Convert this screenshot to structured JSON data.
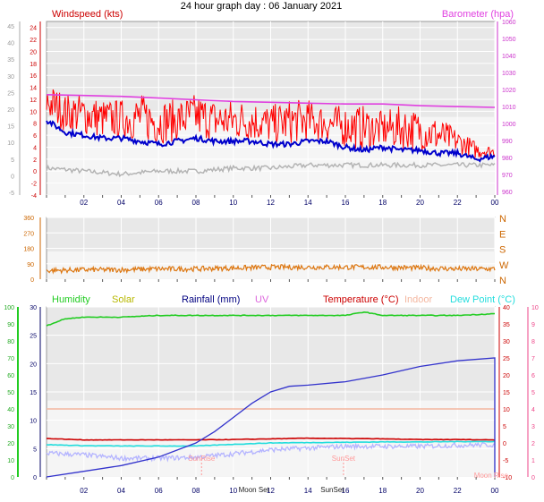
{
  "title": "24 hour graph day : 06 January 2021",
  "colors": {
    "wind_gust": "#ff0000",
    "wind_avg": "#0000cc",
    "wind_grey": "#b4b4b4",
    "barometer": "#e040e0",
    "direction": "#dd7711",
    "humidity": "#22cc22",
    "solar": "#b8b800",
    "rainfall": "#3333cc",
    "uv": "#dd66dd",
    "temperature": "#cc0000",
    "indoor": "#f4b7a0",
    "dewpoint": "#22dddd",
    "apparent": "#b4b4ff",
    "left_axis_ticks": "#999999",
    "baro_axis": "#cc33cc",
    "humidity_axis": "#22aa22",
    "temp_axis": "#cc0000",
    "uv_axis": "#ee4488"
  },
  "chart_data": [
    {
      "type": "line",
      "name": "wind-barometer",
      "title": "24 hour graph day : 06 January 2021",
      "ylabel": "Windspeed (kts)",
      "y2label": "Barometer (hpa)",
      "ylim": [
        -4,
        25
      ],
      "y2lim": [
        958,
        1060
      ],
      "y_ticks": [
        -4,
        -2,
        0,
        2,
        4,
        6,
        8,
        10,
        12,
        14,
        16,
        18,
        20,
        22,
        24
      ],
      "y_ticks_grey": [
        -5,
        0,
        5,
        10,
        15,
        20,
        25,
        30,
        35,
        40,
        45
      ],
      "y2_ticks": [
        960,
        970,
        980,
        990,
        1000,
        1010,
        1020,
        1030,
        1040,
        1050,
        1060
      ],
      "x_ticks": [
        "02",
        "04",
        "06",
        "08",
        "10",
        "12",
        "14",
        "16",
        "18",
        "20",
        "22",
        "00"
      ],
      "xlim_hours": [
        0,
        24
      ],
      "grid": true,
      "series": [
        {
          "name": "Windspeed (kts)",
          "x": [
            0,
            1,
            2,
            3,
            4,
            5,
            6,
            7,
            8,
            9,
            10,
            11,
            12,
            13,
            14,
            15,
            16,
            17,
            18,
            19,
            20,
            21,
            22,
            23,
            24
          ],
          "values": [
            15,
            13,
            13,
            12,
            12,
            13,
            12,
            12,
            13,
            12,
            12,
            12,
            11,
            12,
            12,
            11,
            11,
            11,
            10,
            11,
            10,
            9,
            7,
            5,
            4
          ]
        },
        {
          "name": "average",
          "x": [
            0,
            1,
            2,
            3,
            4,
            5,
            6,
            7,
            8,
            9,
            10,
            11,
            12,
            13,
            14,
            15,
            16,
            17,
            18,
            19,
            20,
            21,
            22,
            23,
            24
          ],
          "values": [
            8.5,
            6.5,
            6,
            5.5,
            5.5,
            5,
            4.5,
            5,
            5.5,
            5,
            5,
            5,
            4.5,
            4.5,
            5,
            5,
            4,
            3.5,
            4,
            3.5,
            3.5,
            3,
            3,
            2,
            2.5
          ]
        },
        {
          "name": "low",
          "x": [
            0,
            2,
            4,
            6,
            8,
            10,
            12,
            14,
            16,
            18,
            20,
            22,
            24
          ],
          "values": [
            0.5,
            0,
            -0.5,
            0,
            0,
            0.5,
            0.5,
            1,
            1,
            1,
            1,
            1,
            1
          ]
        },
        {
          "name": "Barometer (hpa)",
          "x": [
            0,
            2,
            4,
            6,
            8,
            10,
            12,
            14,
            16,
            18,
            20,
            22,
            24
          ],
          "values": [
            1017,
            1016.5,
            1016,
            1015,
            1014,
            1013,
            1012.5,
            1012,
            1011.5,
            1011.5,
            1010.5,
            1010,
            1009.5
          ]
        }
      ]
    },
    {
      "type": "line",
      "name": "wind-direction",
      "ylim": [
        0,
        360
      ],
      "y_ticks": [
        0,
        90,
        180,
        270,
        360
      ],
      "compass_labels": [
        "N",
        "W",
        "S",
        "E",
        "N"
      ],
      "x_ticks": [
        "02",
        "04",
        "06",
        "08",
        "10",
        "12",
        "14",
        "16",
        "18",
        "20",
        "22",
        "00"
      ],
      "xlim_hours": [
        0,
        24
      ],
      "grid": true,
      "series": [
        {
          "name": "direction",
          "x": [
            0,
            2,
            4,
            6,
            8,
            10,
            12,
            14,
            16,
            18,
            20,
            22,
            24
          ],
          "values": [
            50,
            55,
            55,
            60,
            60,
            65,
            70,
            70,
            70,
            70,
            65,
            60,
            60
          ]
        }
      ]
    },
    {
      "type": "line",
      "name": "temperature-humidity-rain",
      "legend": [
        "Humidity",
        "Solar",
        "Rainfall (mm)",
        "UV",
        "Temperature (°C)",
        "Indoor",
        "Dew Point (°C)"
      ],
      "y_humidity_ticks": [
        0,
        10,
        20,
        30,
        40,
        50,
        60,
        70,
        80,
        90,
        100
      ],
      "y_rain_ticks": [
        0,
        5,
        10,
        15,
        20,
        25,
        30
      ],
      "y_temp_ticks": [
        -10,
        -5,
        0,
        5,
        10,
        15,
        20,
        25,
        30,
        35,
        40
      ],
      "y_uv_ticks": [
        0,
        1,
        2,
        3,
        4,
        5,
        6,
        7,
        8,
        9,
        10
      ],
      "x_ticks": [
        "02",
        "04",
        "06",
        "08",
        "10",
        "12",
        "14",
        "16",
        "18",
        "20",
        "22",
        "00"
      ],
      "xlim_hours": [
        0,
        24
      ],
      "grid": true,
      "annotations": [
        {
          "text": "SunRise",
          "hour": 8.3
        },
        {
          "text": "SunSet",
          "hour": 15.9
        },
        {
          "text": "Moon Set",
          "hour": 11.1
        },
        {
          "text": "SunSet",
          "hour": 15.3
        },
        {
          "text": "Moon Rise",
          "hour": 23.8
        }
      ],
      "series": [
        {
          "name": "Humidity",
          "x": [
            0,
            1,
            2,
            4,
            6,
            8,
            10,
            12,
            14,
            16,
            17,
            18,
            20,
            22,
            24
          ],
          "values": [
            89,
            93,
            94,
            94,
            95,
            95,
            95,
            95,
            95,
            95,
            97,
            95,
            95,
            95,
            96
          ]
        },
        {
          "name": "Rainfall (mm)",
          "x": [
            0,
            2,
            4,
            6,
            8,
            9,
            10,
            11,
            12,
            13,
            14,
            16,
            18,
            20,
            22,
            24
          ],
          "values": [
            0,
            1,
            2,
            3.5,
            6,
            8,
            10.5,
            13,
            15,
            16,
            16.2,
            16.8,
            18,
            19.5,
            20.5,
            21
          ]
        },
        {
          "name": "Temperature (°C)",
          "x": [
            0,
            2,
            4,
            6,
            8,
            10,
            12,
            14,
            16,
            18,
            20,
            22,
            24
          ],
          "values": [
            1.3,
            0.9,
            0.9,
            0.9,
            0.9,
            1,
            1.2,
            1.4,
            1.3,
            1.2,
            1,
            1,
            0.9
          ]
        },
        {
          "name": "Indoor",
          "x": [
            0,
            24
          ],
          "values": [
            10,
            10
          ]
        },
        {
          "name": "Dew Point (°C)",
          "x": [
            0,
            2,
            4,
            6,
            8,
            10,
            12,
            14,
            16,
            18,
            20,
            22,
            24
          ],
          "values": [
            -0.5,
            -0.8,
            -0.9,
            -0.9,
            -0.9,
            -0.4,
            0,
            0.1,
            0.2,
            0.3,
            0.3,
            0.4,
            0.4
          ]
        },
        {
          "name": "apparent",
          "x": [
            0,
            2,
            4,
            6,
            8,
            10,
            12,
            14,
            16,
            18,
            20,
            22,
            24
          ],
          "values": [
            -3,
            -3.5,
            -4.5,
            -4.5,
            -4.2,
            -3.2,
            -2,
            -1.5,
            -1,
            -1,
            -1,
            -0.7,
            -0.5
          ]
        }
      ]
    }
  ]
}
